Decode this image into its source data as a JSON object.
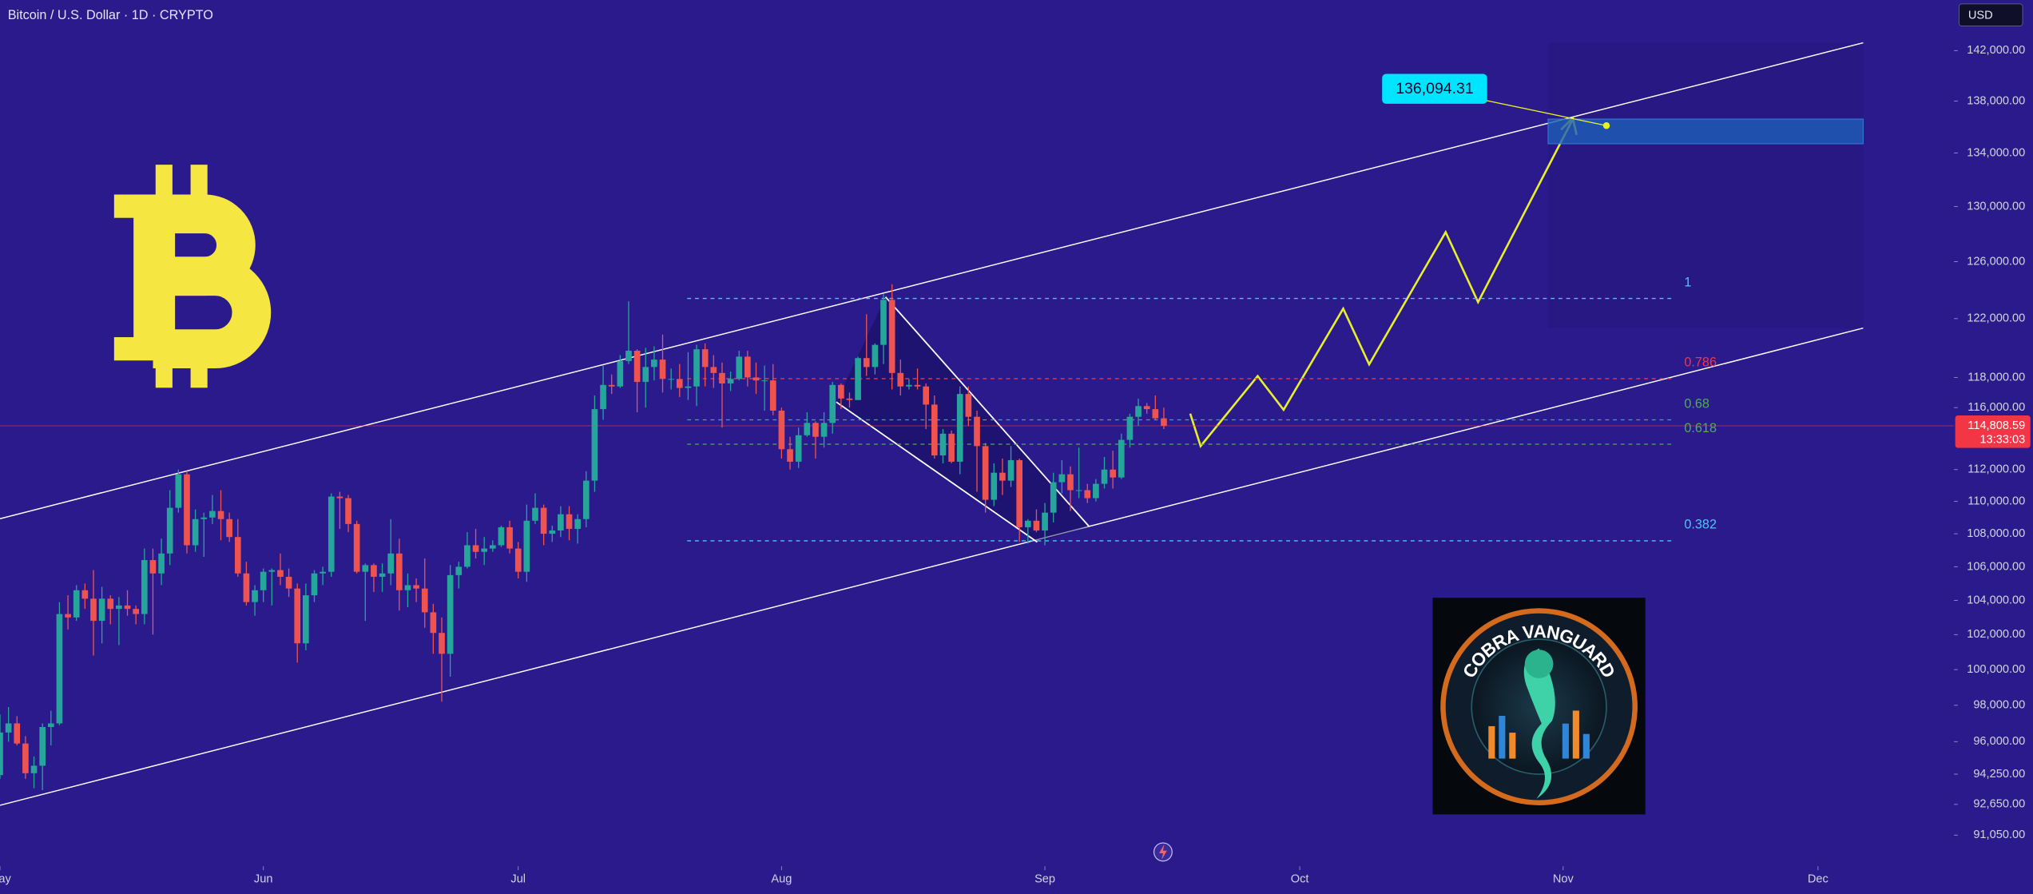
{
  "chart_data": {
    "type": "candlestick",
    "title": "Bitcoin / U.S. Dollar · 1D · CRYPTO",
    "currency": "USD",
    "log": true,
    "background": "#2a1a8c",
    "up_color": "#26a69a",
    "down_color": "#ef5350",
    "xlim": [
      0,
      230
    ],
    "xticks": [
      {
        "value": 0,
        "label": "May"
      },
      {
        "value": 31,
        "label": "Jun"
      },
      {
        "value": 61,
        "label": "Jul"
      },
      {
        "value": 92,
        "label": "Aug"
      },
      {
        "value": 123,
        "label": "Sep"
      },
      {
        "value": 153,
        "label": "Oct"
      },
      {
        "value": 184,
        "label": "Nov"
      },
      {
        "value": 214,
        "label": "Dec"
      }
    ],
    "ylim": [
      89460,
      146130
    ],
    "yticks": [
      {
        "value": 142000,
        "label": "142,000.00"
      },
      {
        "value": 138000,
        "label": "138,000.00"
      },
      {
        "value": 134000,
        "label": "134,000.00"
      },
      {
        "value": 130000,
        "label": "130,000.00"
      },
      {
        "value": 126000,
        "label": "126,000.00"
      },
      {
        "value": 122000,
        "label": "122,000.00"
      },
      {
        "value": 118000,
        "label": "118,000.00"
      },
      {
        "value": 116000,
        "label": "116,000.00"
      },
      {
        "value": 112000,
        "label": "112,000.00"
      },
      {
        "value": 110000,
        "label": "110,000.00"
      },
      {
        "value": 108000,
        "label": "108,000.00"
      },
      {
        "value": 106000,
        "label": "106,000.00"
      },
      {
        "value": 104000,
        "label": "104,000.00"
      },
      {
        "value": 102000,
        "label": "102,000.00"
      },
      {
        "value": 100000,
        "label": "100,000.00"
      },
      {
        "value": 98000,
        "label": "98,000.00"
      },
      {
        "value": 96000,
        "label": "96,000.00"
      },
      {
        "value": 94250,
        "label": "94,250.00"
      },
      {
        "value": 92650,
        "label": "92,650.00"
      },
      {
        "value": 91050,
        "label": "91,050.00"
      }
    ],
    "open": [
      94200,
      96500,
      97000,
      95900,
      94300,
      94700,
      96800,
      97000,
      103200,
      103000,
      104600,
      104100,
      102800,
      104100,
      103500,
      103700,
      103500,
      103200,
      106400,
      105600,
      106800,
      109600,
      111700,
      107300,
      108900,
      109000,
      109400,
      108900,
      107800,
      105600,
      103900,
      104600,
      105700,
      105800,
      105400,
      104700,
      101500,
      104300,
      105600,
      105700,
      110300,
      110200,
      108600,
      105700,
      106100,
      105400,
      105600,
      106800,
      104600,
      104900,
      104700,
      103300,
      102100,
      100900,
      105500,
      106000,
      107300,
      106900,
      107100,
      107300,
      108400,
      107100,
      105700,
      108800,
      109600,
      108000,
      108200,
      109200,
      108300,
      108900,
      111300,
      115900,
      117500,
      117400,
      119100,
      119800,
      117700,
      118700,
      119200,
      117900,
      117900,
      117300,
      117400,
      119900,
      118700,
      118300,
      117600,
      117900,
      119400,
      118000,
      117800,
      117800,
      115800,
      113300,
      112500,
      114200,
      115000,
      114100,
      115000,
      117500,
      116600,
      116500,
      119300,
      118700,
      120200,
      123300,
      118300,
      117400,
      117500,
      117400,
      116200,
      112900,
      114300,
      112500,
      116900,
      115400,
      113500,
      110100,
      111800,
      111300,
      112600,
      108400,
      108800,
      108200,
      109300,
      111200,
      111700,
      110700,
      110700,
      110200,
      111100,
      112000,
      111500,
      113900,
      115400,
      116100,
      115900,
      115300
    ],
    "high": [
      97500,
      97900,
      97400,
      96300,
      95200,
      97000,
      97700,
      103900,
      104300,
      104900,
      105000,
      105800,
      104800,
      104300,
      104200,
      104600,
      103700,
      107100,
      107100,
      107700,
      110700,
      112000,
      111900,
      109500,
      109300,
      110400,
      110700,
      109300,
      108900,
      106300,
      104900,
      105900,
      105900,
      106800,
      105900,
      105000,
      105000,
      105800,
      106000,
      110500,
      110600,
      110400,
      108800,
      106200,
      106200,
      106200,
      108900,
      107700,
      105600,
      105300,
      106500,
      103800,
      103000,
      106100,
      106300,
      108100,
      108300,
      107800,
      107600,
      108500,
      108800,
      107500,
      109800,
      110500,
      109800,
      108500,
      109700,
      109700,
      109200,
      111900,
      116800,
      118800,
      118200,
      119500,
      123200,
      119900,
      120000,
      120100,
      120900,
      118600,
      118900,
      119700,
      120200,
      120300,
      119500,
      119000,
      118400,
      119800,
      119800,
      119000,
      118800,
      118900,
      116000,
      114100,
      114700,
      115700,
      115100,
      115700,
      117700,
      117600,
      117000,
      119400,
      122300,
      120300,
      123700,
      124400,
      119200,
      117900,
      118600,
      117600,
      116800,
      114600,
      114500,
      117400,
      117400,
      115800,
      113700,
      112400,
      112700,
      113500,
      112700,
      108900,
      109500,
      109900,
      111800,
      112600,
      112200,
      113400,
      111100,
      111400,
      112800,
      113200,
      114300,
      115600,
      116600,
      116300,
      116800,
      116000
    ],
    "low": [
      94000,
      96000,
      95800,
      94000,
      93500,
      93400,
      95800,
      96900,
      102300,
      102800,
      103500,
      100800,
      101500,
      102600,
      101400,
      103100,
      102600,
      102600,
      102000,
      104900,
      106100,
      109300,
      106800,
      106900,
      106600,
      108600,
      107600,
      107500,
      105400,
      103700,
      103100,
      103900,
      103700,
      104900,
      104200,
      100400,
      101100,
      103900,
      104900,
      105400,
      108300,
      108100,
      105600,
      102800,
      104500,
      104500,
      104900,
      103400,
      103600,
      103900,
      102400,
      100900,
      98200,
      99600,
      104700,
      105900,
      106500,
      106100,
      106900,
      107200,
      106800,
      105300,
      105100,
      108600,
      107300,
      107500,
      107800,
      107600,
      107400,
      108400,
      110600,
      115200,
      116900,
      117300,
      118900,
      115700,
      116000,
      117800,
      117000,
      117200,
      116700,
      116500,
      116100,
      117400,
      117300,
      114700,
      117100,
      117800,
      117400,
      116900,
      115800,
      115500,
      112700,
      112000,
      112100,
      114100,
      112700,
      113400,
      114300,
      115900,
      116000,
      116500,
      118100,
      118200,
      118900,
      117200,
      116800,
      117200,
      117200,
      114600,
      112700,
      112400,
      112400,
      111700,
      114800,
      110600,
      109300,
      109700,
      110400,
      110900,
      107500,
      107400,
      108100,
      107300,
      108700,
      110500,
      109400,
      110200,
      109900,
      110000,
      110800,
      110800,
      111400,
      113400,
      114800,
      115600,
      115200,
      114600
    ],
    "close": [
      96500,
      97000,
      95900,
      94300,
      94700,
      96800,
      97000,
      103200,
      103000,
      104600,
      104100,
      102800,
      104100,
      103500,
      103700,
      103500,
      103200,
      106400,
      105600,
      106800,
      109600,
      111700,
      107300,
      108900,
      109000,
      109400,
      108900,
      107800,
      105600,
      103900,
      104600,
      105700,
      105800,
      105400,
      104700,
      101500,
      104300,
      105600,
      105700,
      110300,
      110200,
      108600,
      105700,
      106100,
      105400,
      105600,
      106800,
      104600,
      104900,
      104700,
      103300,
      102100,
      100900,
      105500,
      106000,
      107300,
      106900,
      107100,
      107300,
      108400,
      107100,
      105700,
      108800,
      109600,
      108000,
      108200,
      109200,
      108300,
      108900,
      111300,
      115900,
      117500,
      117400,
      119100,
      119800,
      117700,
      118700,
      119200,
      117900,
      117900,
      117300,
      117400,
      119900,
      118700,
      118300,
      117600,
      117900,
      119400,
      118000,
      117800,
      117800,
      115800,
      113300,
      112500,
      114200,
      115000,
      114100,
      115000,
      117500,
      116600,
      116500,
      119300,
      118700,
      120200,
      123300,
      118300,
      117400,
      117500,
      117400,
      116200,
      112900,
      114300,
      112500,
      116900,
      115400,
      113500,
      110100,
      111800,
      111300,
      112600,
      108400,
      108800,
      108200,
      109300,
      111200,
      111700,
      110700,
      110700,
      110200,
      111100,
      112000,
      111500,
      113900,
      115400,
      116100,
      115900,
      115300,
      114808.59
    ],
    "last_price_label": "114,808.59",
    "last_price_color": "#f23645",
    "countdown": "13:33:03",
    "fib_levels": [
      {
        "ratio": 1,
        "price": 123400,
        "color": "#4fc3f7"
      },
      {
        "ratio": 0.786,
        "price": 117920,
        "color": "#f23645"
      },
      {
        "ratio": 0.68,
        "price": 115200,
        "color": "#4caf50"
      },
      {
        "ratio": 0.618,
        "price": 113620,
        "color": "#4caf50"
      },
      {
        "ratio": 0.382,
        "price": 107570,
        "color": "#4fc3f7"
      }
    ],
    "target": {
      "value": 136094.31,
      "label": "136,094.31"
    },
    "target_zone": [
      134700,
      136600
    ],
    "logo_text": "COBRA VANGUARD"
  }
}
